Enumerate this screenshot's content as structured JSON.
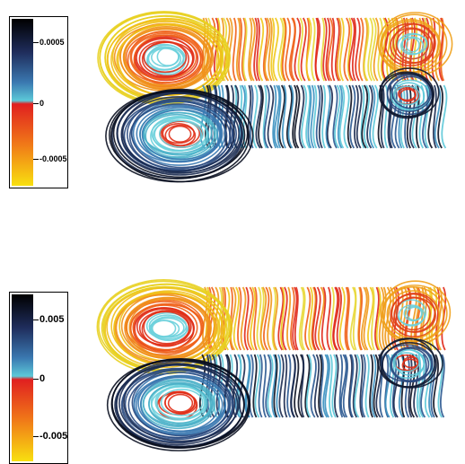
{
  "panels": [
    {
      "colorbar": {
        "tick_top": "0.0005",
        "tick_mid": "0",
        "tick_bottom": "-0.0005",
        "colors": [
          "#000000",
          "#1f2d5c",
          "#3a78b0",
          "#5cc8d8",
          "#e02020",
          "#f07818",
          "#f8e010"
        ]
      }
    },
    {
      "colorbar": {
        "tick_top": "0.005",
        "tick_mid": "0",
        "tick_bottom": "-0.005",
        "colors": [
          "#000000",
          "#1f2d5c",
          "#3a78b0",
          "#5cc8d8",
          "#e02020",
          "#f07818",
          "#f8e010"
        ]
      }
    }
  ]
}
